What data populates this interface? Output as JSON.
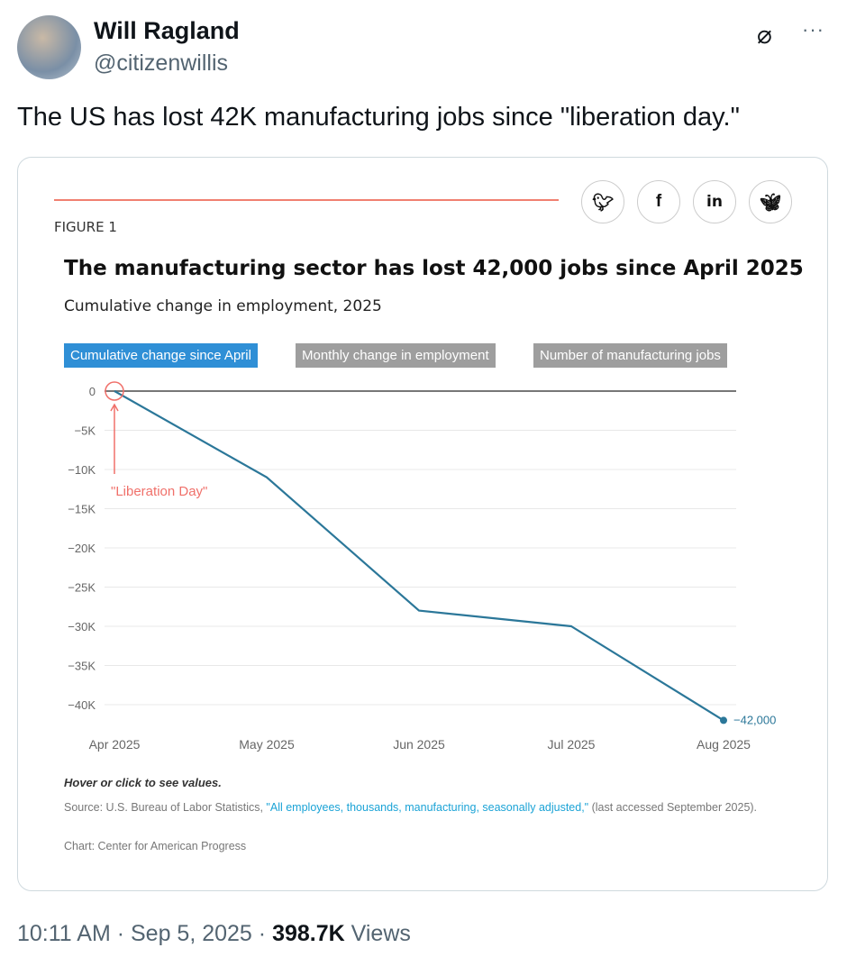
{
  "author": {
    "name": "Will Ragland",
    "handle": "@citizenwillis"
  },
  "icons": {
    "grok": "grok-icon",
    "more": "more-icon",
    "share": [
      "twitter-icon",
      "facebook-icon",
      "linkedin-icon",
      "bluesky-icon"
    ]
  },
  "tweet_text": "The US has lost 42K manufacturing jobs since \"liberation day.\"",
  "card": {
    "figure_label": "FIGURE 1",
    "title": "The manufacturing sector has lost 42,000 jobs since April 2025",
    "subtitle": "Cumulative change in employment, 2025",
    "tabs": [
      {
        "label": "Cumulative change since April",
        "active": true
      },
      {
        "label": "Monthly change in employment",
        "active": false
      },
      {
        "label": "Number of manufacturing jobs",
        "active": false
      }
    ],
    "hover_note": "Hover or click to see values.",
    "source_prefix": "Source: U.S. Bureau of Labor Statistics, ",
    "source_link": "\"All employees, thousands, manufacturing, seasonally adjusted,\"",
    "source_suffix": " (last accessed September 2025).",
    "credit": "Chart: Center for American Progress"
  },
  "chart_data": {
    "type": "line",
    "categories": [
      "Apr 2025",
      "May 2025",
      "Jun 2025",
      "Jul 2025",
      "Aug 2025"
    ],
    "values": [
      0,
      -11000,
      -28000,
      -30000,
      -42000
    ],
    "ylim": [
      -42000,
      0
    ],
    "yticks": [
      0,
      -5000,
      -10000,
      -15000,
      -20000,
      -25000,
      -30000,
      -35000,
      -40000
    ],
    "ytick_labels": [
      "0",
      "−5K",
      "−10K",
      "−15K",
      "−20K",
      "−25K",
      "−30K",
      "−35K",
      "−40K"
    ],
    "end_label": "−42,000",
    "annotation": "\"Liberation Day\"",
    "grid": true,
    "line_color": "#2b7799",
    "annotation_color": "#f0706a"
  },
  "meta": {
    "time": "10:11 AM",
    "date": "Sep 5, 2025",
    "views": "398.7K",
    "views_label": "Views"
  }
}
